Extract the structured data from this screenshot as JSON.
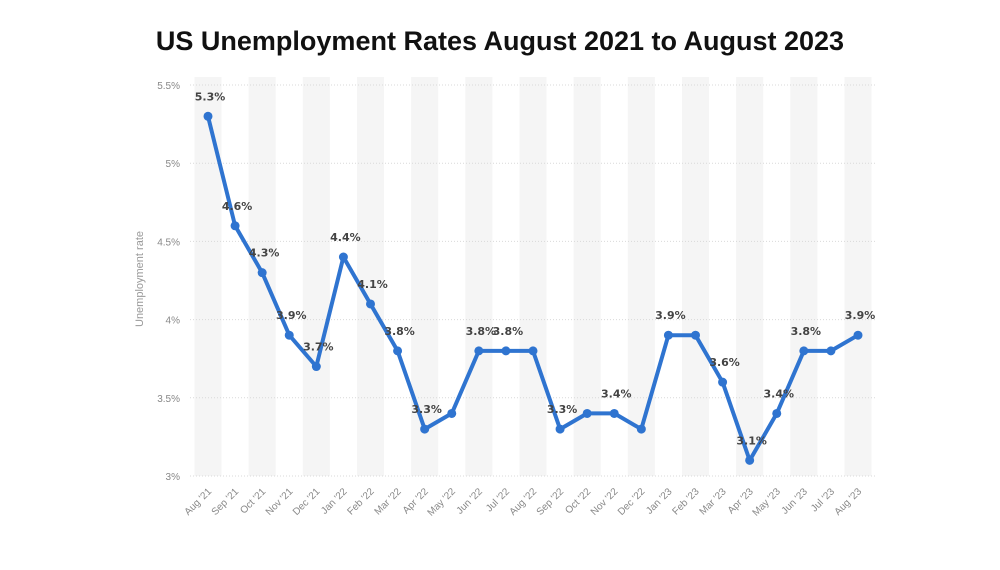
{
  "chart_data": {
    "type": "line",
    "title": "US Unemployment Rates August 2021 to August 2023",
    "xlabel": "",
    "ylabel": "Unemployment rate",
    "ylim": [
      3,
      5.5
    ],
    "yticks": [
      3,
      3.5,
      4,
      4.5,
      5,
      5.5
    ],
    "ytick_labels": [
      "3%",
      "3.5%",
      "4%",
      "4.5%",
      "5%",
      "5.5%"
    ],
    "grid": true,
    "line_color": "#2f74d0",
    "categories": [
      "Aug '21",
      "Sep '21",
      "Oct '21",
      "Nov '21",
      "Dec '21",
      "Jan '22",
      "Feb '22",
      "Mar '22",
      "Apr '22",
      "May '22",
      "Jun '22",
      "Jul '22",
      "Aug '22",
      "Sep '22",
      "Oct '22",
      "Nov '22",
      "Dec '22",
      "Jan '23",
      "Feb '23",
      "Mar '23",
      "Apr '23",
      "May '23",
      "Jun '23",
      "Jul '23",
      "Aug '23"
    ],
    "series": [
      {
        "values": [
          5.3,
          4.6,
          4.3,
          3.9,
          3.7,
          4.4,
          4.1,
          3.8,
          3.3,
          3.4,
          3.8,
          3.8,
          3.8,
          3.3,
          3.4,
          3.4,
          3.3,
          3.9,
          3.9,
          3.6,
          3.1,
          3.4,
          3.8,
          3.8,
          3.9
        ],
        "data_labels": [
          "5.3%",
          "4.6%",
          "4.3%",
          "3.9%",
          "3.7%",
          "4.4%",
          "4.1%",
          "3.8%",
          "3.3%",
          null,
          "3.8%",
          "3.8%",
          null,
          "3.3%",
          null,
          "3.4%",
          null,
          "3.9%",
          null,
          "3.6%",
          "3.1%",
          "3.4%",
          "3.8%",
          null,
          "3.9%"
        ]
      }
    ]
  }
}
